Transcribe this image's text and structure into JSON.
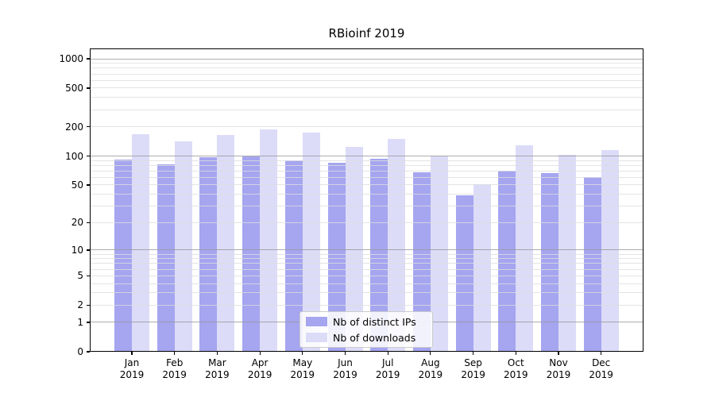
{
  "title": "RBioinf 2019",
  "chart_data": {
    "type": "bar",
    "title": "RBioinf 2019",
    "y_scale": "log1p",
    "grid": "on",
    "legend_position": "lower center (inside plot)",
    "categories": [
      "Jan",
      "Feb",
      "Mar",
      "Apr",
      "May",
      "Jun",
      "Jul",
      "Aug",
      "Sep",
      "Oct",
      "Nov",
      "Dec"
    ],
    "year_label": "2019",
    "series": [
      {
        "name": "Nb of distinct IPs",
        "color": "#a5a5f0",
        "values": [
          92,
          82,
          97,
          100,
          90,
          85,
          94,
          68,
          39,
          70,
          67,
          60
        ]
      },
      {
        "name": "Nb of downloads",
        "color": "#dcdcf8",
        "values": [
          168,
          141,
          165,
          187,
          176,
          125,
          149,
          101,
          51,
          128,
          103,
          115
        ]
      }
    ],
    "y_ticks": [
      0,
      1,
      2,
      5,
      10,
      20,
      50,
      100,
      200,
      500,
      1000
    ],
    "y_major_gridlines": [
      1,
      10,
      100,
      1000
    ],
    "y_minor_gridlines": [
      2,
      3,
      4,
      5,
      6,
      7,
      8,
      9,
      20,
      30,
      40,
      50,
      60,
      70,
      80,
      90,
      200,
      300,
      400,
      500,
      600,
      700,
      800,
      900
    ],
    "ylim": [
      0,
      1280
    ]
  },
  "colors": {
    "background": "#ffffff",
    "bar_distinct_ips": "#a5a5f0",
    "bar_downloads": "#dcdcf8",
    "grid_major": "#999999",
    "grid_minor": "#dddddd",
    "spine": "#000000",
    "legend_border": "#cccccc"
  }
}
